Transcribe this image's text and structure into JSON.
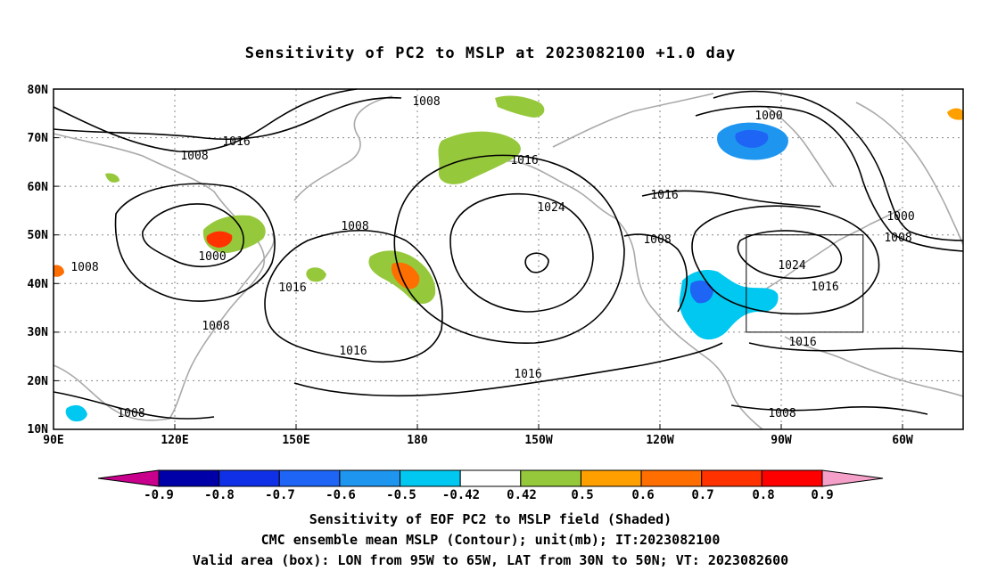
{
  "title": "Sensitivity of PC2 to MSLP at 2023082100 +1.0 day",
  "map": {
    "lat_labels": [
      "80N",
      "70N",
      "60N",
      "50N",
      "40N",
      "30N",
      "20N",
      "10N"
    ],
    "lon_labels": [
      "90E",
      "120E",
      "150E",
      "180",
      "150W",
      "120W",
      "90W",
      "60W"
    ],
    "lon_range": [
      90,
      315
    ],
    "lat_range": [
      10,
      80
    ],
    "grid": "dotted",
    "contour_unit": "mb",
    "contour_labels": [
      "1008",
      "1016",
      "1008",
      "1000",
      "1008",
      "1016",
      "1008",
      "1016",
      "1008",
      "1016",
      "1024",
      "1016",
      "1008",
      "1016",
      "1000",
      "1024",
      "1016",
      "1016",
      "1008",
      "1000",
      "1008",
      "1016",
      "1008"
    ],
    "valid_area_box": {
      "lon": [
        -95,
        -65
      ],
      "lat": [
        30,
        50
      ]
    }
  },
  "colorbar": {
    "labels": [
      "-0.9",
      "-0.8",
      "-0.7",
      "-0.6",
      "-0.5",
      "-0.42",
      "0.42",
      "0.5",
      "0.6",
      "0.7",
      "0.8",
      "0.9"
    ],
    "colors": [
      "#0000a8",
      "#1030e8",
      "#1e64f5",
      "#1e96f0",
      "#00c8f0",
      "#ffffff",
      "#96c83c",
      "#ffa000",
      "#ff6e00",
      "#ff3200",
      "#ff0000"
    ],
    "left_extend_color": "#c8008c",
    "right_extend_color": "#f5a0c8"
  },
  "captions": [
    "Sensitivity of EOF PC2 to MSLP field (Shaded)",
    "CMC ensemble mean MSLP (Contour); unit(mb); IT:2023082100",
    "Valid area (box): LON from 95W to 65W, LAT from 30N to 50N; VT: 2023082600"
  ]
}
